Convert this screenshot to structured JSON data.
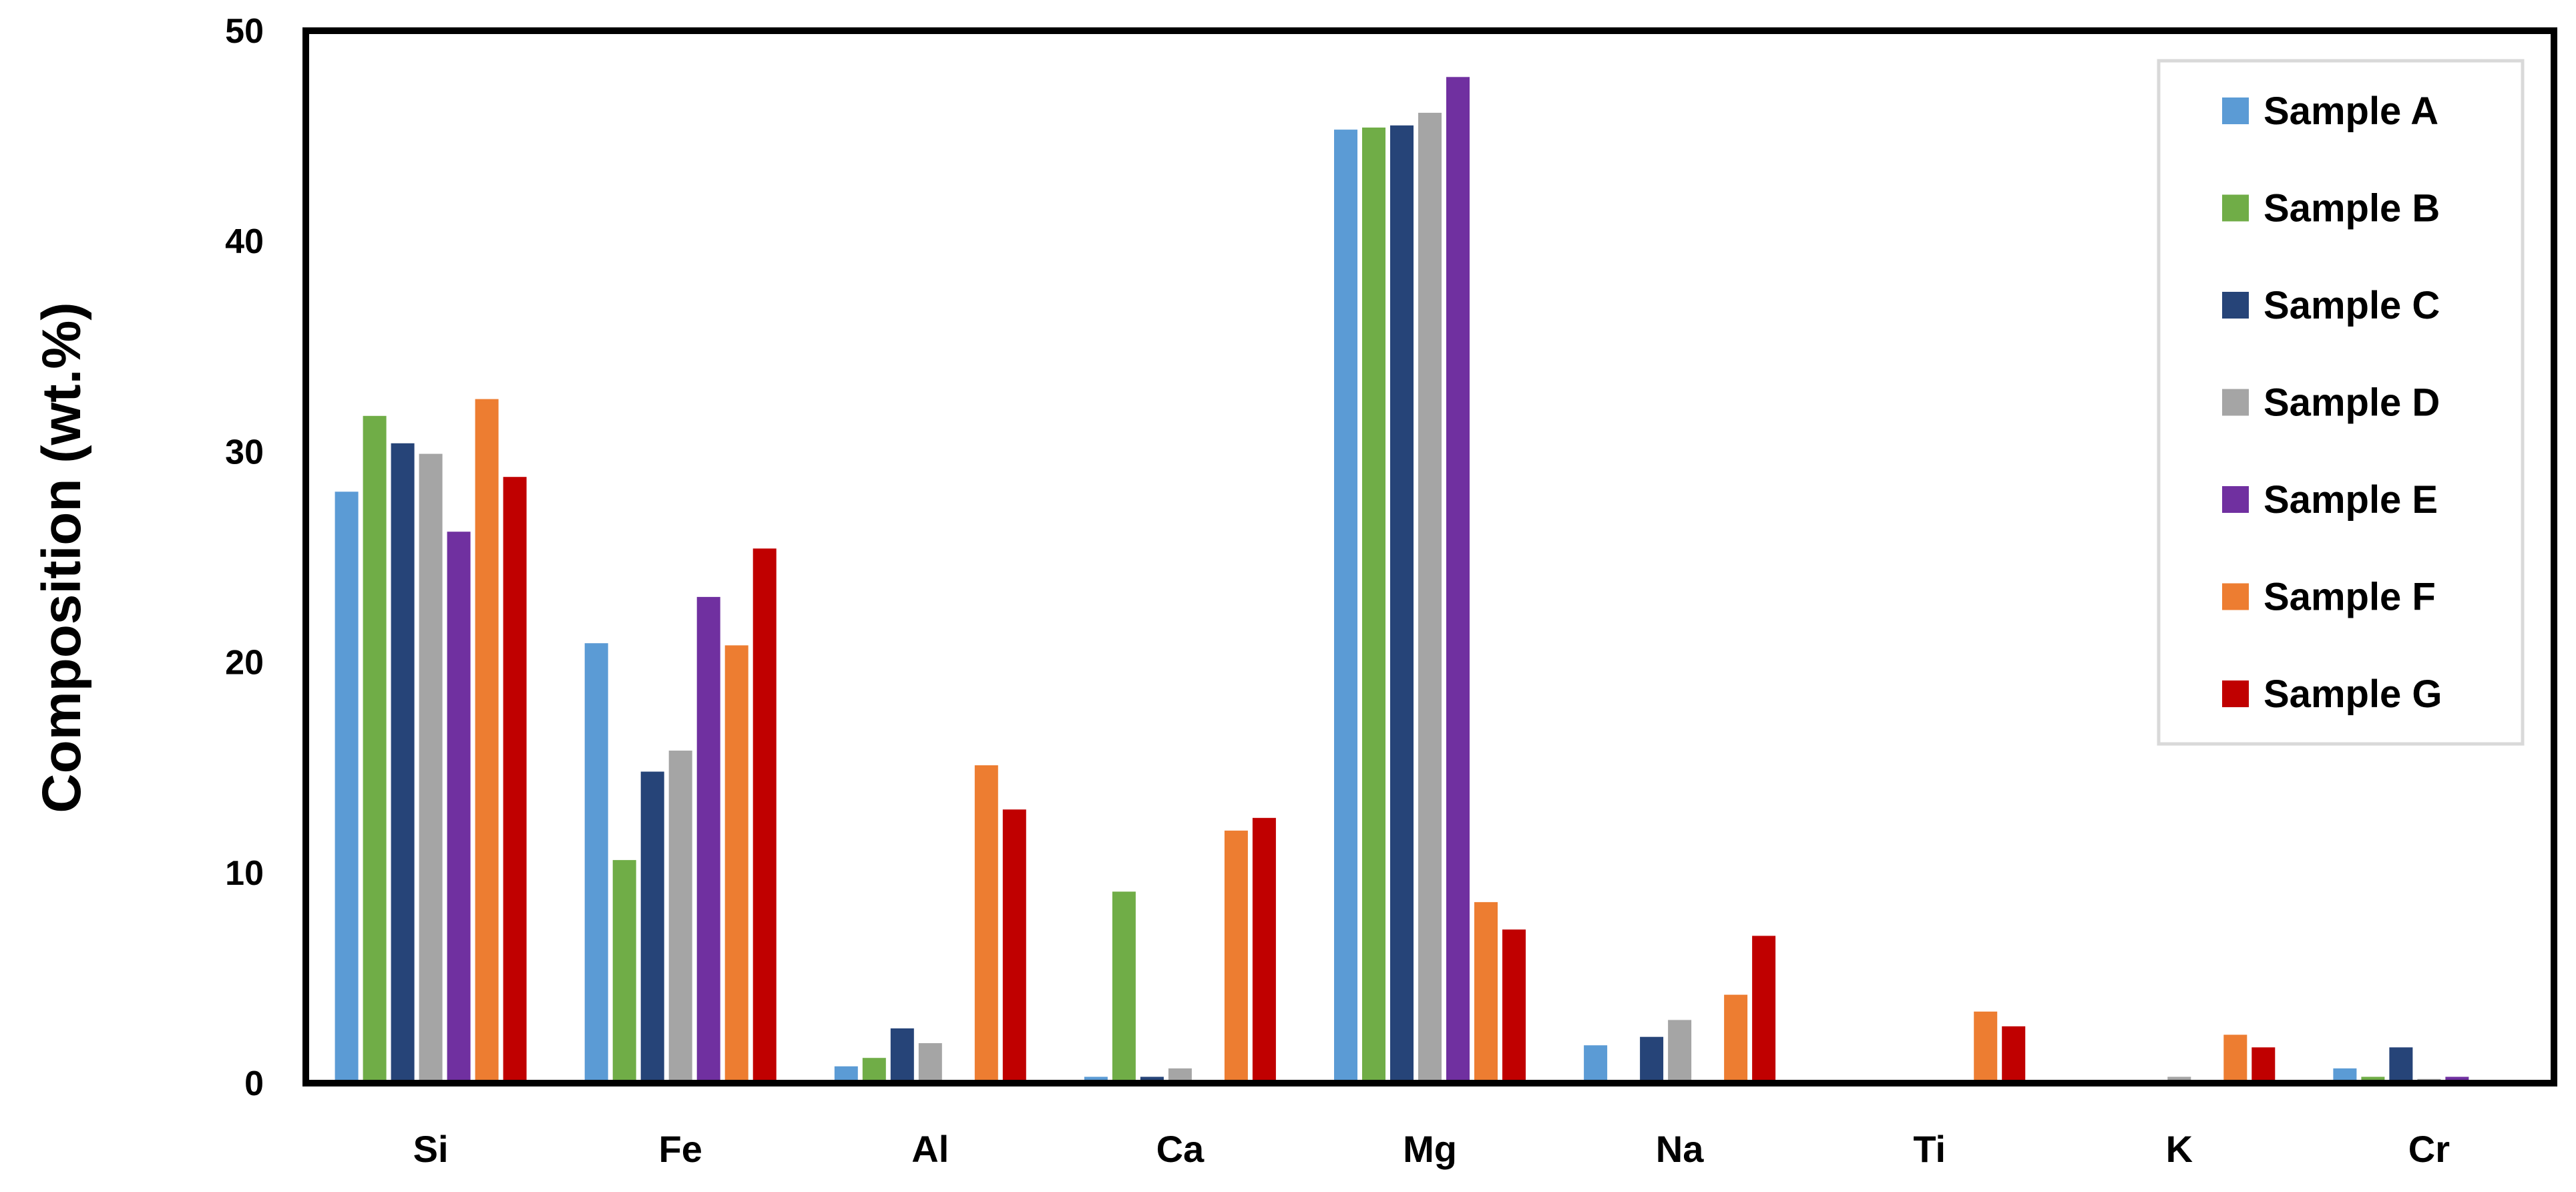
{
  "chart_data": {
    "type": "bar",
    "title": "",
    "xlabel": "",
    "ylabel": "Composition (wt.%)",
    "ylim": [
      0,
      50
    ],
    "yticks": [
      0,
      10,
      20,
      30,
      40,
      50
    ],
    "grid": false,
    "legend_position": "top-right",
    "categories": [
      "Si",
      "Fe",
      "Al",
      "Ca",
      "Mg",
      "Na",
      "Ti",
      "K",
      "Cr"
    ],
    "series": [
      {
        "name": "Sample A",
        "color": "#5B9BD5",
        "values": [
          28.1,
          20.9,
          0.8,
          0.3,
          45.3,
          1.8,
          0.0,
          0.1,
          0.7
        ]
      },
      {
        "name": "Sample B",
        "color": "#70AD47",
        "values": [
          31.7,
          10.6,
          1.2,
          9.1,
          45.4,
          0.0,
          0.0,
          0.1,
          0.3
        ]
      },
      {
        "name": "Sample C",
        "color": "#264478",
        "values": [
          30.4,
          14.8,
          2.6,
          0.3,
          45.5,
          2.2,
          0.0,
          0.0,
          1.7
        ]
      },
      {
        "name": "Sample D",
        "color": "#A5A5A5",
        "values": [
          29.9,
          15.8,
          1.9,
          0.7,
          46.1,
          3.0,
          0.0,
          0.3,
          0.2
        ]
      },
      {
        "name": "Sample E",
        "color": "#7030A0",
        "values": [
          26.2,
          23.1,
          0.0,
          0.1,
          47.8,
          0.0,
          0.0,
          0.1,
          0.3
        ]
      },
      {
        "name": "Sample F",
        "color": "#ED7D31",
        "values": [
          32.5,
          20.8,
          15.1,
          12.0,
          8.6,
          4.2,
          3.4,
          2.3,
          0.0
        ]
      },
      {
        "name": "Sample G",
        "color": "#C00000",
        "values": [
          28.8,
          25.4,
          13.0,
          12.6,
          7.3,
          7.0,
          2.7,
          1.7,
          0.0
        ]
      }
    ]
  }
}
